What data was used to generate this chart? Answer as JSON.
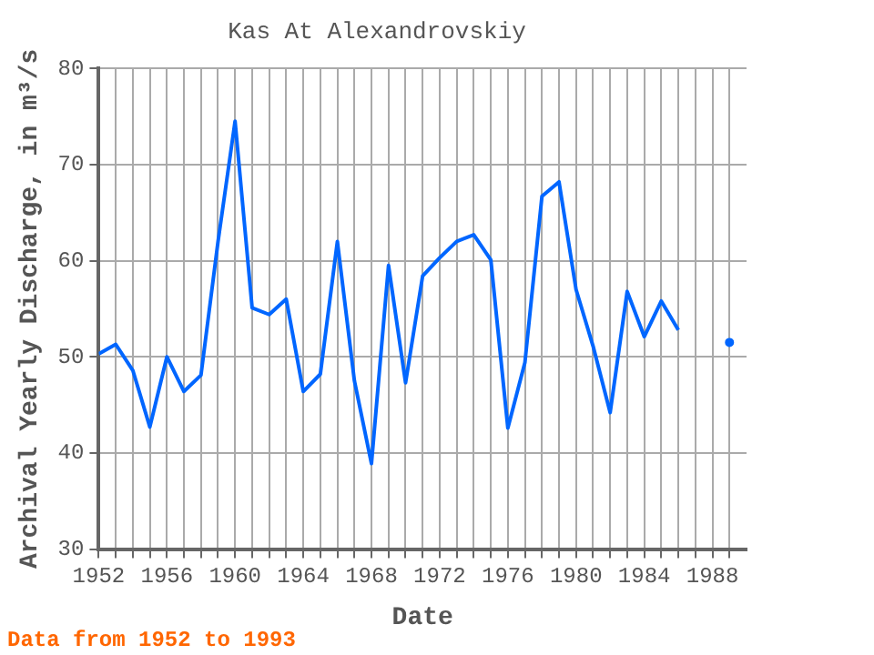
{
  "chart_data": {
    "type": "line",
    "title": "Kas At Alexandrovskiy",
    "xlabel": "Date",
    "ylabel": "Archival Yearly Discharge, in m³/s",
    "annotations": [
      "Data from 1952 to 1993"
    ],
    "x": [
      1952,
      1953,
      1954,
      1955,
      1956,
      1957,
      1958,
      1959,
      1960,
      1961,
      1962,
      1963,
      1964,
      1965,
      1966,
      1967,
      1968,
      1969,
      1970,
      1971,
      1972,
      1973,
      1974,
      1975,
      1976,
      1977,
      1978,
      1979,
      1980,
      1981,
      1982,
      1983,
      1984,
      1985,
      1986,
      1987,
      1988,
      1989
    ],
    "series": [
      {
        "color": "#0066ff",
        "values": [
          50.3,
          51.3,
          48.6,
          42.7,
          50.0,
          46.4,
          48.1,
          62,
          74.5,
          55.1,
          54.4,
          56.0,
          46.4,
          48.2,
          62.0,
          47.5,
          38.9,
          59.5,
          47.3,
          58.4,
          60.3,
          62.0,
          62.7,
          60.1,
          42.6,
          49.4,
          66.7,
          68.2,
          57.0,
          51.1,
          44.2,
          56.8,
          52.1,
          55.8,
          52.8,
          null,
          null,
          51.5
        ]
      }
    ],
    "xlim": [
      1952,
      1990
    ],
    "xticks": [
      1952,
      {
        "value": 1953,
        "label": null
      },
      {
        "value": 1954,
        "label": null
      },
      {
        "value": 1955,
        "label": null
      },
      1956,
      {
        "value": 1957,
        "label": null
      },
      {
        "value": 1958,
        "label": null
      },
      {
        "value": 1959,
        "label": null
      },
      1960,
      {
        "value": 1961,
        "label": null
      },
      {
        "value": 1962,
        "label": null
      },
      {
        "value": 1963,
        "label": null
      },
      1964,
      {
        "value": 1965,
        "label": null
      },
      {
        "value": 1966,
        "label": null
      },
      {
        "value": 1967,
        "label": null
      },
      1968,
      {
        "value": 1969,
        "label": null
      },
      {
        "value": 1970,
        "label": null
      },
      {
        "value": 1971,
        "label": null
      },
      1972,
      {
        "value": 1973,
        "label": null
      },
      {
        "value": 1974,
        "label": null
      },
      {
        "value": 1975,
        "label": null
      },
      1976,
      {
        "value": 1977,
        "label": null
      },
      {
        "value": 1978,
        "label": null
      },
      {
        "value": 1979,
        "label": null
      },
      1980,
      {
        "value": 1981,
        "label": null
      },
      {
        "value": 1982,
        "label": null
      },
      {
        "value": 1983,
        "label": null
      },
      1984,
      {
        "value": 1985,
        "label": null
      },
      {
        "value": 1986,
        "label": null
      },
      {
        "value": 1987,
        "label": null
      },
      1988,
      {
        "value": 1989,
        "label": null
      }
    ],
    "ylim": [
      30,
      80
    ],
    "yticks": [
      30,
      40,
      50,
      60,
      70,
      80
    ],
    "grid": true,
    "legend": false,
    "marker": "none",
    "line_style": "solid"
  }
}
